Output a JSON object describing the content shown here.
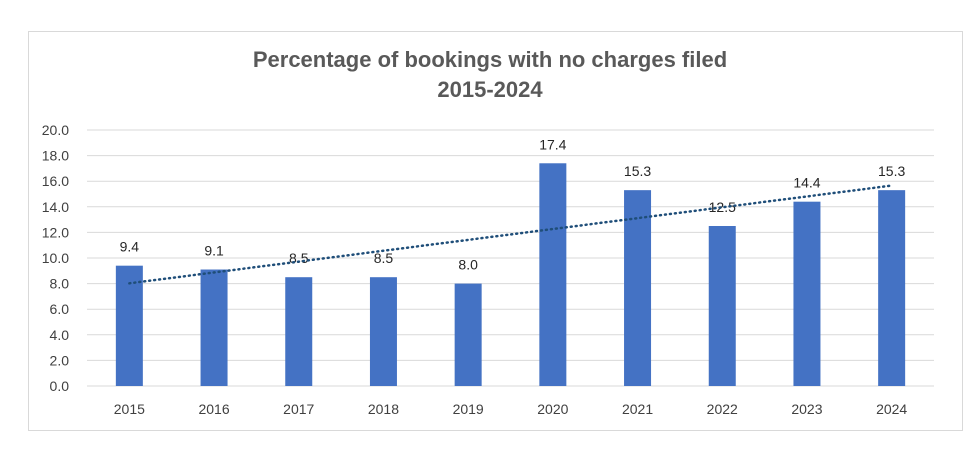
{
  "chart_data": {
    "type": "bar",
    "title_line1": "Percentage of bookings with no charges filed",
    "title_line2": "2015-2024",
    "categories": [
      "2015",
      "2016",
      "2017",
      "2018",
      "2019",
      "2020",
      "2021",
      "2022",
      "2023",
      "2024"
    ],
    "values": [
      9.4,
      9.1,
      8.5,
      8.5,
      8.0,
      17.4,
      15.3,
      12.5,
      14.4,
      15.3
    ],
    "data_labels": [
      "9.4",
      "9.1",
      "8.5",
      "8.5",
      "8.0",
      "17.4",
      "15.3",
      "12.5",
      "14.4",
      "15.3"
    ],
    "ylim": [
      0,
      20
    ],
    "yticks": [
      "0.0",
      "2.0",
      "4.0",
      "6.0",
      "8.0",
      "10.0",
      "12.0",
      "14.0",
      "16.0",
      "18.0",
      "20.0"
    ],
    "bar_color": "#4472C4",
    "trendline": {
      "type": "linear",
      "style": "dotted",
      "color": "#1F4E79"
    },
    "grid": true,
    "legend": "none"
  }
}
